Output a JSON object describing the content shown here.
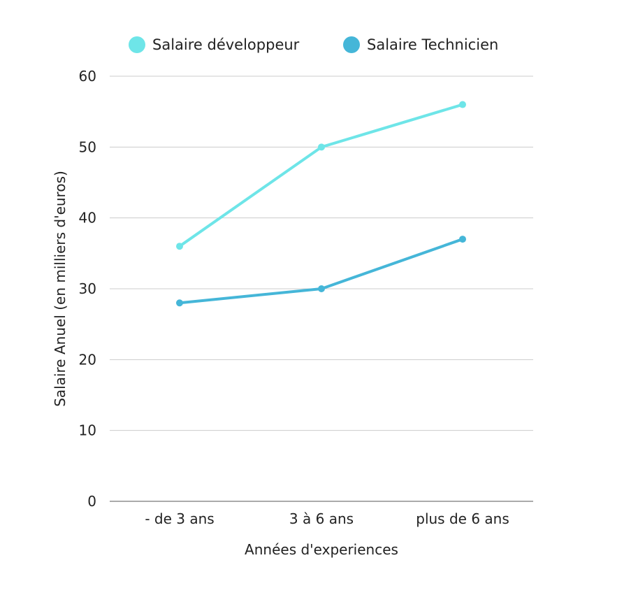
{
  "chart_data": {
    "type": "line",
    "categories": [
      "- de 3 ans",
      "3 à 6 ans",
      "plus de 6 ans"
    ],
    "series": [
      {
        "name": "Salaire développeur",
        "color": "#6ee5e8",
        "values": [
          36,
          50,
          56
        ]
      },
      {
        "name": "Salaire Technicien",
        "color": "#45b6d8",
        "values": [
          28,
          30,
          37
        ]
      }
    ],
    "xlabel": "Années d'experiences",
    "ylabel": "Salaire Anuel (en milliers d'euros)",
    "ylim": [
      0,
      60
    ],
    "yticks": [
      0,
      10,
      20,
      30,
      40,
      50,
      60
    ],
    "grid": true,
    "legend_position": "top"
  }
}
